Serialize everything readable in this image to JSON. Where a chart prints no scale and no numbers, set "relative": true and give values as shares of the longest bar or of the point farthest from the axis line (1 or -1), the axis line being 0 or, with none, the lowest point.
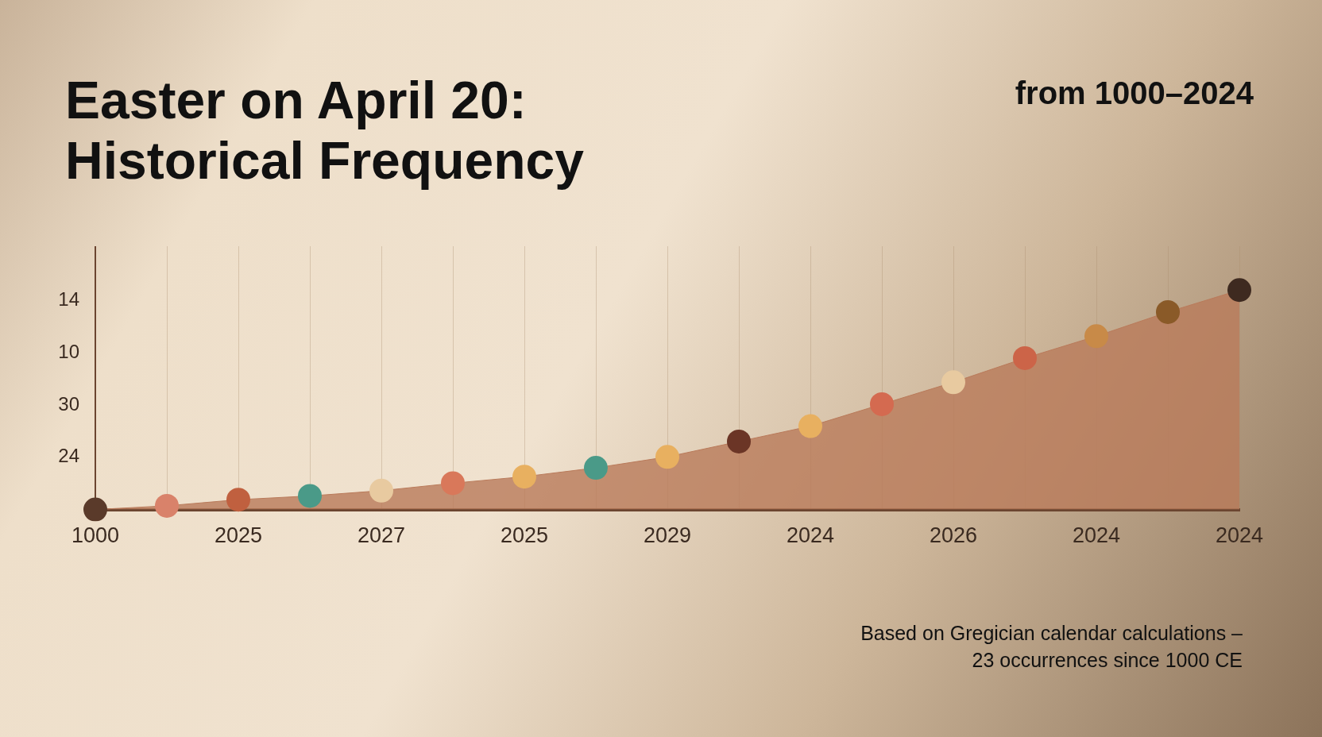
{
  "chart_data": {
    "type": "area",
    "title": "Easter on April 20:\nHistorical Frequency",
    "subtitle": "from 1000–2024",
    "categories": [
      "1000",
      null,
      "2025",
      null,
      "2027",
      null,
      "2025",
      null,
      "2029",
      null,
      "2024",
      null,
      "2026",
      null,
      "2024",
      null,
      "2024"
    ],
    "relative": true,
    "series": [
      {
        "type": "area",
        "color": "#b97a5a",
        "values": [
          0,
          0.017,
          0.045,
          0.062,
          0.086,
          0.12,
          0.15,
          0.19,
          0.24,
          0.31,
          0.38,
          0.48,
          0.58,
          0.69,
          0.79,
          0.9,
          1
        ],
        "colors": [
          "#5a3a2a",
          "#d9826a",
          "#c0603f",
          "#4a9a88",
          "#e8caa0",
          "#d9785a",
          "#e8b060",
          "#4a9a88",
          "#e8b060",
          "#6b3526",
          "#e8b060",
          "#d46a50",
          "#e8caa0",
          "#cc6448",
          "#c88a48",
          "#8a5a28",
          "#3e2a20"
        ]
      }
    ],
    "grid": "x",
    "marker": "circle",
    "annotations": [
      "14",
      "10",
      "30",
      "24",
      "Based on Gregician calendar calculations –\n23 occurrences since 1000 CE"
    ]
  }
}
